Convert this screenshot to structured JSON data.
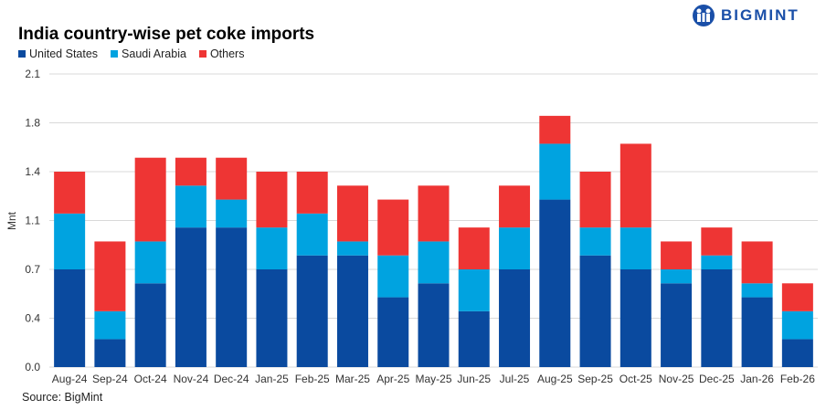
{
  "brand": "BIGMINT",
  "chart_data": {
    "type": "bar",
    "stacked": true,
    "title": "India country-wise pet coke imports",
    "ylabel": "Mnt",
    "xlabel": "",
    "ylim": [
      0,
      2.1
    ],
    "yticks": [
      "0.0",
      "0.4",
      "0.7",
      "1.1",
      "1.4",
      "1.8",
      "2.1"
    ],
    "ytick_values": [
      0,
      0.35,
      0.7,
      1.05,
      1.4,
      1.75,
      2.1
    ],
    "grid": true,
    "legend_position": "top-left",
    "categories": [
      "Aug-24",
      "Sep-24",
      "Oct-24",
      "Nov-24",
      "Dec-24",
      "Jan-25",
      "Feb-25",
      "Mar-25",
      "Apr-25",
      "May-25",
      "Jun-25",
      "Jul-25",
      "Aug-25",
      "Sep-25",
      "Oct-25",
      "Nov-25",
      "Dec-25",
      "Jan-26",
      "Feb-26"
    ],
    "series": [
      {
        "name": "United States",
        "color": "#0a4a9f",
        "values": [
          0.7,
          0.2,
          0.6,
          1.0,
          1.0,
          0.7,
          0.8,
          0.8,
          0.5,
          0.6,
          0.4,
          0.7,
          1.2,
          0.8,
          0.7,
          0.6,
          0.7,
          0.5,
          0.2
        ]
      },
      {
        "name": "Saudi Arabia",
        "color": "#00a3e0",
        "values": [
          0.4,
          0.2,
          0.3,
          0.3,
          0.2,
          0.3,
          0.3,
          0.1,
          0.3,
          0.3,
          0.3,
          0.3,
          0.4,
          0.2,
          0.3,
          0.1,
          0.1,
          0.1,
          0.2
        ]
      },
      {
        "name": "Others",
        "color": "#ee3534",
        "values": [
          0.3,
          0.5,
          0.6,
          0.2,
          0.3,
          0.4,
          0.3,
          0.4,
          0.4,
          0.4,
          0.3,
          0.3,
          0.2,
          0.4,
          0.6,
          0.2,
          0.2,
          0.3,
          0.2
        ]
      }
    ]
  },
  "source": "Source: BigMint"
}
